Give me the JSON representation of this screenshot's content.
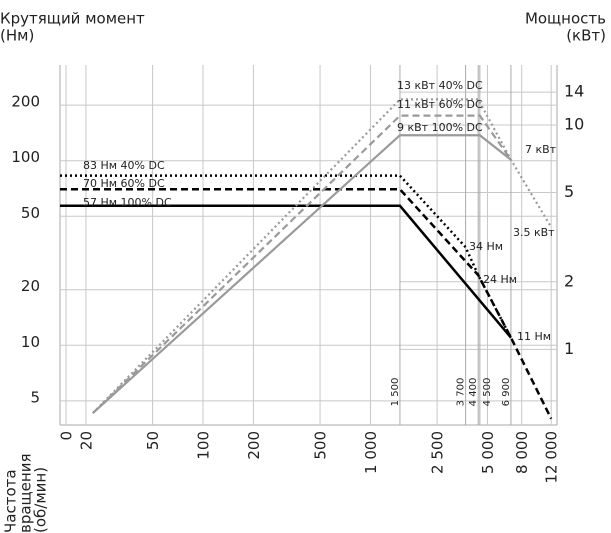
{
  "chart_data": {
    "type": "line",
    "y_label": [
      "Крутящий момент",
      "(Нм)"
    ],
    "y2_label": [
      "Мощность",
      "(кВт)"
    ],
    "x_label": [
      "Частота",
      "вращения",
      "(об/мин)"
    ],
    "xscale": "log",
    "yscale": "log",
    "y2scale": "log",
    "xlim": [
      14,
      13000
    ],
    "ylim": [
      3.7,
      330
    ],
    "y2lim": [
      0.46,
      18.5
    ],
    "xticks": [
      0,
      20,
      50,
      100,
      200,
      500,
      {
        "value": 1000,
        "label": "1 000"
      },
      {
        "value": 2500,
        "label": "2 500"
      },
      {
        "value": 5000,
        "label": "5 000"
      },
      {
        "value": 8000,
        "label": "8 000"
      },
      {
        "value": 12000,
        "label": "12 000"
      }
    ],
    "yticks": [
      5,
      10,
      20,
      50,
      100,
      200
    ],
    "y2ticks": [
      1,
      2,
      5,
      10,
      14
    ],
    "grid": true,
    "markers": [
      {
        "value": 1500,
        "label": "1 500"
      },
      {
        "value": 3700,
        "label": "3 700"
      },
      {
        "value": 4400,
        "label": "4 400"
      },
      {
        "value": 4500,
        "label": "4 500"
      },
      {
        "value": 6900,
        "label": "6 900"
      }
    ],
    "series": [
      {
        "name": "83 Нм 40% DC",
        "axis": "y",
        "color": "#000000",
        "style": "dotted",
        "x": [
          14,
          1500,
          3700,
          4400,
          6900
        ],
        "values": [
          83,
          83,
          34,
          24,
          11
        ]
      },
      {
        "name": "70 Нм 60% DC",
        "axis": "y",
        "color": "#000000",
        "style": "dashed",
        "x": [
          14,
          1500,
          4400,
          6900,
          12000
        ],
        "values": [
          70,
          70,
          24,
          11,
          4
        ]
      },
      {
        "name": "57 Нм 100% DC",
        "axis": "y",
        "color": "#000000",
        "style": "solid",
        "x": [
          14,
          1500,
          6900
        ],
        "values": [
          57,
          57,
          11
        ]
      },
      {
        "name": "13 кВт 40% DC",
        "axis": "y2",
        "color": "#9a9a9a",
        "style": "dotted",
        "x": [
          22,
          1500,
          4400,
          6900,
          12000
        ],
        "values": [
          0.52,
          13,
          13,
          7,
          3.5
        ]
      },
      {
        "name": "11 кВт 60% DC",
        "axis": "y2",
        "color": "#9a9a9a",
        "style": "dashed",
        "x": [
          22,
          1500,
          4500,
          6900
        ],
        "values": [
          0.52,
          11,
          11,
          7
        ]
      },
      {
        "name": "9 кВт 100% DC",
        "axis": "y2",
        "color": "#9a9a9a",
        "style": "solid",
        "x": [
          22,
          1500,
          4500,
          6900
        ],
        "values": [
          0.52,
          9,
          9,
          7
        ]
      }
    ],
    "annotations": [
      "34 Нм",
      "24 Нм",
      "11 Нм",
      "7 кВт",
      "3.5 кВт"
    ]
  }
}
